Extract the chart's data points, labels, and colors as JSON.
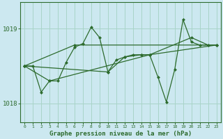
{
  "xlabel": "Graphe pression niveau de la mer (hPa)",
  "background_color": "#cce8f0",
  "grid_color": "#a8d4c8",
  "line_color": "#2d6b2d",
  "ylim": [
    1017.75,
    1019.35
  ],
  "yticks": [
    1018,
    1019
  ],
  "xticks": [
    0,
    1,
    2,
    3,
    4,
    5,
    6,
    7,
    8,
    9,
    10,
    11,
    12,
    13,
    14,
    15,
    16,
    17,
    18,
    19,
    20,
    21,
    22,
    23
  ],
  "series1_pts": [
    [
      0,
      1018.5
    ],
    [
      1,
      1018.5
    ],
    [
      2,
      1018.15
    ],
    [
      3,
      1018.3
    ],
    [
      4,
      1018.3
    ],
    [
      5,
      1018.55
    ],
    [
      6,
      1018.75
    ],
    [
      7,
      1018.8
    ],
    [
      8,
      1019.02
    ],
    [
      9,
      1018.88
    ],
    [
      10,
      1018.42
    ],
    [
      11,
      1018.58
    ],
    [
      12,
      1018.62
    ],
    [
      13,
      1018.65
    ],
    [
      14,
      1018.65
    ],
    [
      15,
      1018.65
    ],
    [
      16,
      1018.35
    ],
    [
      17,
      1018.02
    ],
    [
      18,
      1018.45
    ],
    [
      19,
      1019.12
    ],
    [
      20,
      1018.82
    ],
    [
      21,
      1018.78
    ],
    [
      22,
      1018.78
    ]
  ],
  "series2_pts": [
    [
      0,
      1018.5
    ],
    [
      10,
      1018.42
    ],
    [
      12,
      1018.62
    ],
    [
      14,
      1018.65
    ],
    [
      15,
      1018.65
    ],
    [
      20,
      1018.88
    ],
    [
      22,
      1018.78
    ],
    [
      23,
      1018.78
    ]
  ],
  "series3_pts": [
    [
      0,
      1018.5
    ],
    [
      6,
      1018.78
    ],
    [
      23,
      1018.78
    ]
  ],
  "series4_pts": [
    [
      0,
      1018.5
    ],
    [
      3,
      1018.3
    ],
    [
      15,
      1018.65
    ],
    [
      23,
      1018.78
    ]
  ]
}
